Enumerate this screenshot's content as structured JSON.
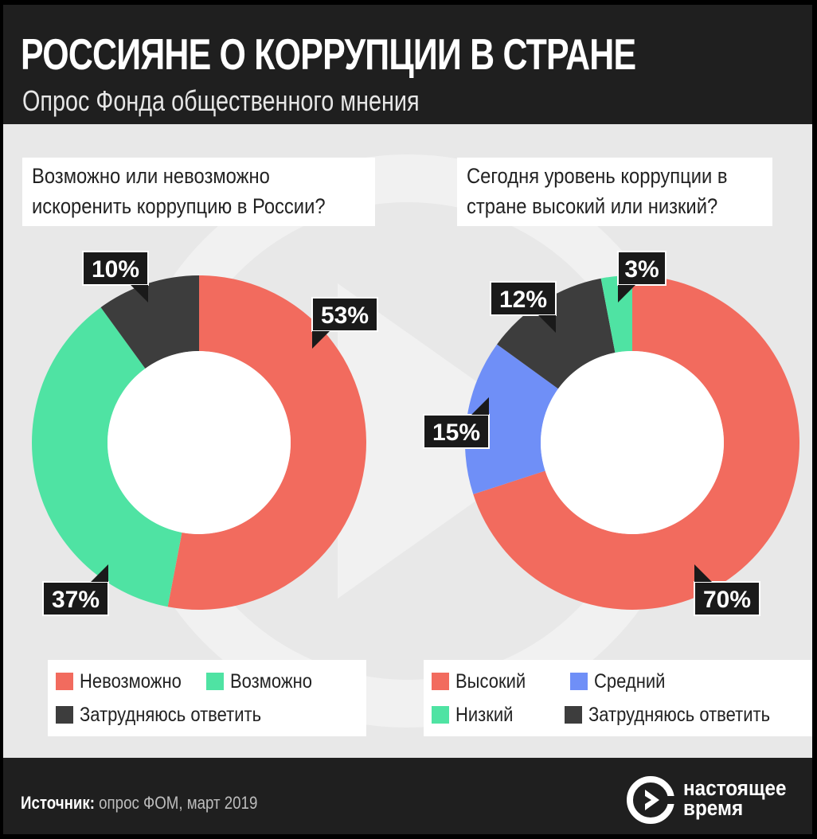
{
  "header": {
    "title": "РОССИЯНЕ О КОРРУПЦИИ В СТРАНЕ",
    "subtitle": "Опрос Фонда общественного мнения"
  },
  "chart_data": [
    {
      "type": "pie",
      "question_lines": [
        "Возможно или невозможно",
        "искоренить коррупцию в России?"
      ],
      "categories": [
        "Невозможно",
        "Возможно",
        "Затрудняюсь ответить"
      ],
      "values": [
        53,
        37,
        10
      ],
      "labels": [
        "53%",
        "37%",
        "10%"
      ],
      "colors": [
        "#f26b5e",
        "#4fe3a3",
        "#3d3d3d"
      ],
      "legend": [
        "Невозможно",
        "Возможно",
        "Затрудняюсь ответить"
      ]
    },
    {
      "type": "pie",
      "question_lines": [
        "Сегодня уровень коррупции в",
        "стране высокий или низкий?"
      ],
      "categories": [
        "Высокий",
        "Средний",
        "Затрудняюсь ответить",
        "Низкий"
      ],
      "values": [
        70,
        15,
        12,
        3
      ],
      "labels": [
        "70%",
        "15%",
        "12%",
        "3%"
      ],
      "colors": [
        "#f26b5e",
        "#6f8ff7",
        "#3d3d3d",
        "#4fe3a3"
      ],
      "legend": [
        "Высокий",
        "Средний",
        "Низкий",
        "Затрудняюсь ответить"
      ],
      "legend_colors": [
        "#f26b5e",
        "#6f8ff7",
        "#4fe3a3",
        "#3d3d3d"
      ]
    }
  ],
  "footer": {
    "source_label": "Источник:",
    "source_text": " опрос ФОМ, март 2019",
    "logo_line1": "настоящее",
    "logo_line2": "время"
  }
}
